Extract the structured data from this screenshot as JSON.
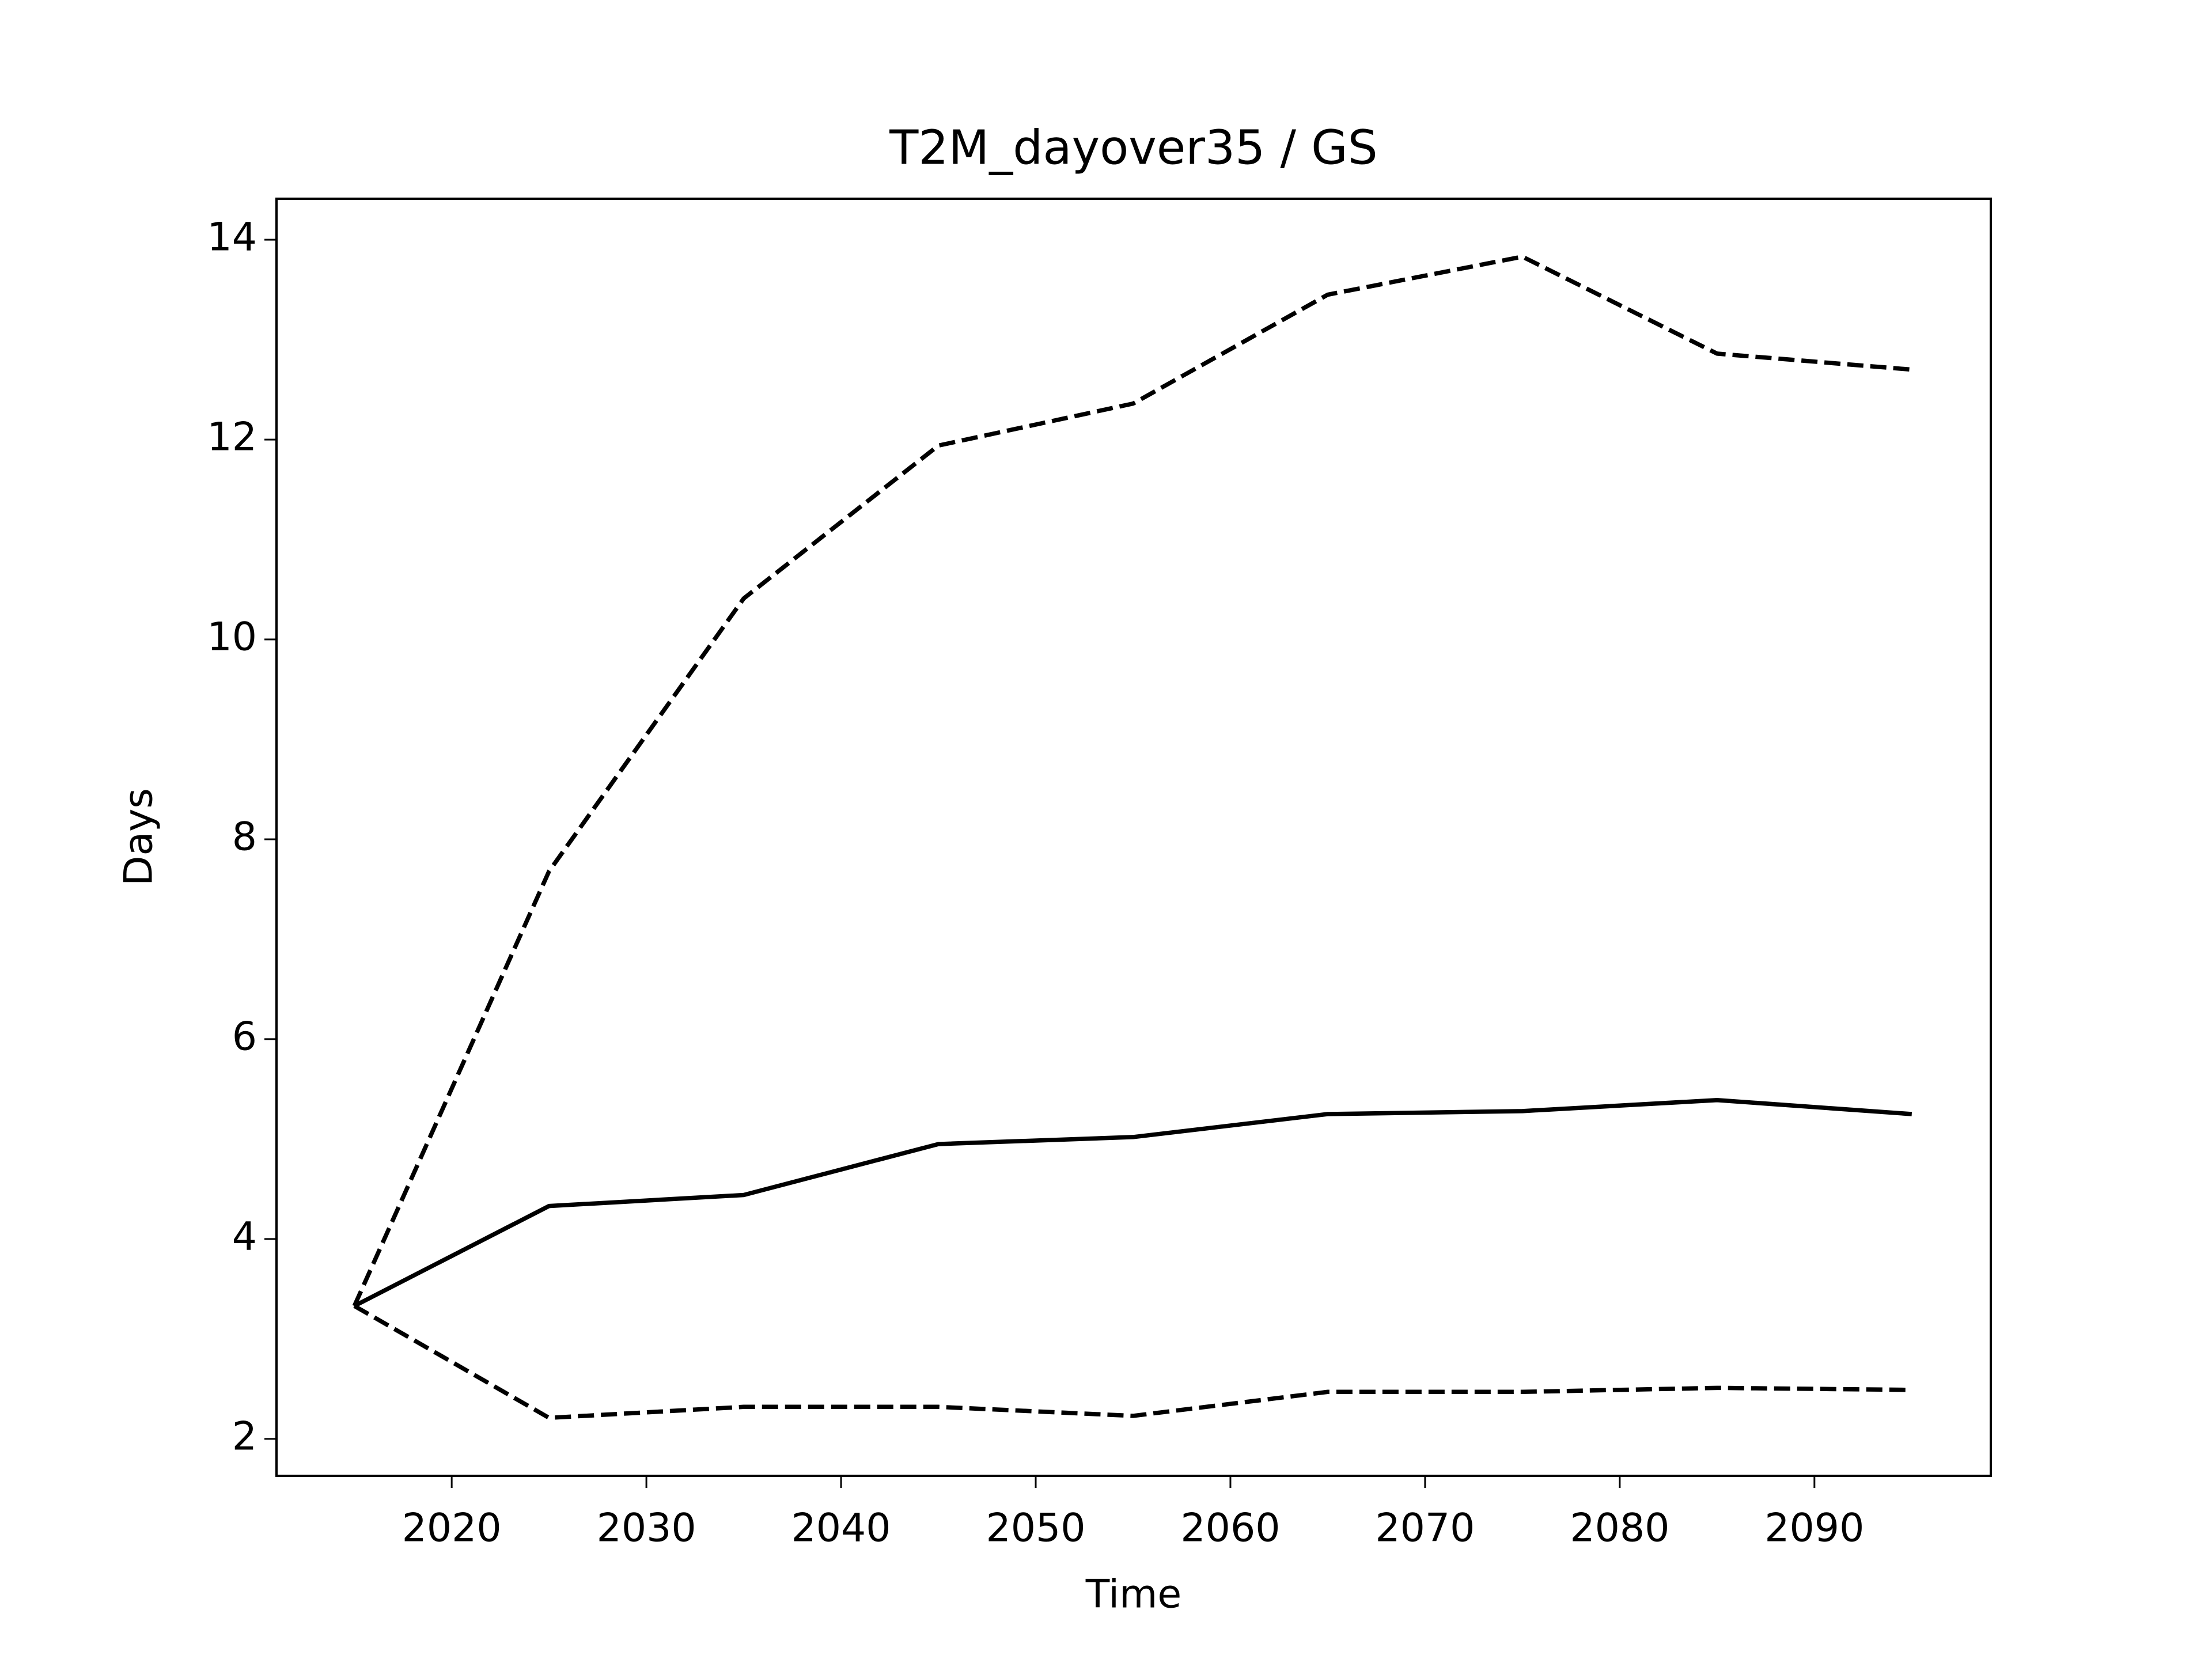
{
  "chart_data": {
    "type": "line",
    "title": "T2M_dayover35 / GS",
    "x_label": "Time",
    "y_label": "Days",
    "x": [
      2015,
      2025,
      2035,
      2045,
      2055,
      2065,
      2075,
      2085,
      2095
    ],
    "series": [
      {
        "color": "#000000",
        "linestyle": "solid",
        "values": [
          3.33,
          4.33,
          4.44,
          4.95,
          5.02,
          5.25,
          5.28,
          5.39,
          5.25
        ]
      },
      {
        "color": "#000000",
        "linestyle": "dashed",
        "values": [
          3.33,
          7.68,
          10.41,
          11.94,
          12.36,
          13.45,
          13.83,
          12.86,
          12.7
        ]
      },
      {
        "color": "#000000",
        "linestyle": "dashed",
        "values": [
          3.33,
          2.21,
          2.32,
          2.32,
          2.23,
          2.47,
          2.47,
          2.51,
          2.49
        ]
      }
    ],
    "xlim": [
      2011.0,
      2099.06
    ],
    "ylim": [
      1.63,
      14.41
    ],
    "xticks": [
      2020,
      2030,
      2040,
      2050,
      2060,
      2070,
      2080,
      2090
    ],
    "yticks": [
      2,
      4,
      6,
      8,
      10,
      12,
      14
    ],
    "grid": false
  }
}
